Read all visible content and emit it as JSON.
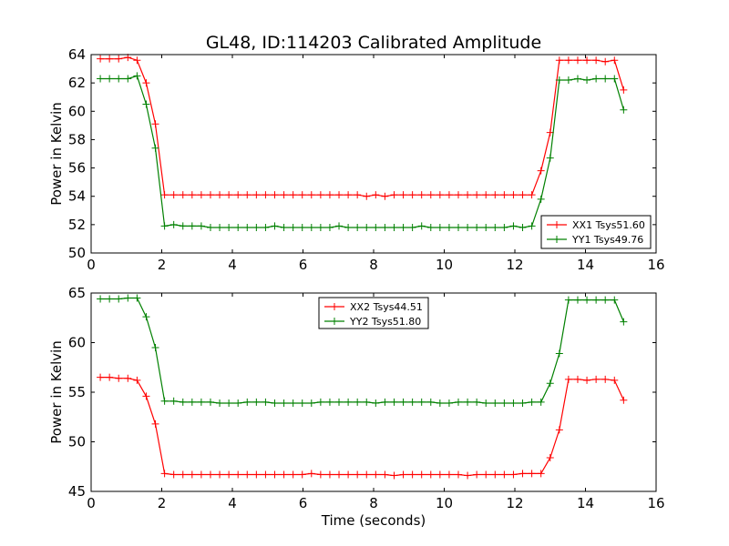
{
  "title": "GL48, ID:114203 Calibrated Amplitude",
  "colors": {
    "red": "#ff0000",
    "green": "#008000"
  },
  "chart_data": [
    {
      "type": "line",
      "xlabel": "",
      "ylabel": "Power in Kelvin",
      "xlim": [
        0,
        16
      ],
      "ylim": [
        50,
        64
      ],
      "xticks": [
        "0",
        "2",
        "4",
        "6",
        "8",
        "10",
        "12",
        "14",
        "16"
      ],
      "yticks": [
        "50",
        "52",
        "54",
        "56",
        "58",
        "60",
        "62",
        "64"
      ],
      "legend_position": "lower-right",
      "x": [
        0.26,
        0.52,
        0.78,
        1.04,
        1.3,
        1.56,
        1.82,
        2.08,
        2.34,
        2.6,
        2.86,
        3.12,
        3.38,
        3.64,
        3.9,
        4.16,
        4.42,
        4.68,
        4.94,
        5.2,
        5.46,
        5.72,
        5.98,
        6.24,
        6.5,
        6.76,
        7.02,
        7.28,
        7.54,
        7.8,
        8.06,
        8.32,
        8.58,
        8.84,
        9.1,
        9.36,
        9.62,
        9.88,
        10.14,
        10.4,
        10.66,
        10.92,
        11.18,
        11.44,
        11.7,
        11.96,
        12.22,
        12.48,
        12.74,
        13.0,
        13.26,
        13.52,
        13.78,
        14.04,
        14.3,
        14.56,
        14.82,
        15.08
      ],
      "series": [
        {
          "name": "XX1 Tsys51.60",
          "color": "#ff0000",
          "values": [
            63.7,
            63.7,
            63.7,
            63.8,
            63.6,
            62.0,
            59.1,
            54.1,
            54.1,
            54.1,
            54.1,
            54.1,
            54.1,
            54.1,
            54.1,
            54.1,
            54.1,
            54.1,
            54.1,
            54.1,
            54.1,
            54.1,
            54.1,
            54.1,
            54.1,
            54.1,
            54.1,
            54.1,
            54.1,
            54.0,
            54.1,
            54.0,
            54.1,
            54.1,
            54.1,
            54.1,
            54.1,
            54.1,
            54.1,
            54.1,
            54.1,
            54.1,
            54.1,
            54.1,
            54.1,
            54.1,
            54.1,
            54.1,
            55.8,
            58.5,
            63.6,
            63.6,
            63.6,
            63.6,
            63.6,
            63.5,
            63.6,
            61.5
          ]
        },
        {
          "name": "YY1 Tsys49.76",
          "color": "#008000",
          "values": [
            62.3,
            62.3,
            62.3,
            62.3,
            62.5,
            60.5,
            57.4,
            51.9,
            52.0,
            51.9,
            51.9,
            51.9,
            51.8,
            51.8,
            51.8,
            51.8,
            51.8,
            51.8,
            51.8,
            51.9,
            51.8,
            51.8,
            51.8,
            51.8,
            51.8,
            51.8,
            51.9,
            51.8,
            51.8,
            51.8,
            51.8,
            51.8,
            51.8,
            51.8,
            51.8,
            51.9,
            51.8,
            51.8,
            51.8,
            51.8,
            51.8,
            51.8,
            51.8,
            51.8,
            51.8,
            51.9,
            51.8,
            51.9,
            53.8,
            56.7,
            62.2,
            62.2,
            62.3,
            62.2,
            62.3,
            62.3,
            62.3,
            60.1
          ]
        }
      ]
    },
    {
      "type": "line",
      "xlabel": "Time (seconds)",
      "ylabel": "Power in Kelvin",
      "xlim": [
        0,
        16
      ],
      "ylim": [
        45,
        65
      ],
      "xticks": [
        "0",
        "2",
        "4",
        "6",
        "8",
        "10",
        "12",
        "14",
        "16"
      ],
      "yticks": [
        "45",
        "50",
        "55",
        "60",
        "65"
      ],
      "legend_position": "upper-center",
      "x": [
        0.26,
        0.52,
        0.78,
        1.04,
        1.3,
        1.56,
        1.82,
        2.08,
        2.34,
        2.6,
        2.86,
        3.12,
        3.38,
        3.64,
        3.9,
        4.16,
        4.42,
        4.68,
        4.94,
        5.2,
        5.46,
        5.72,
        5.98,
        6.24,
        6.5,
        6.76,
        7.02,
        7.28,
        7.54,
        7.8,
        8.06,
        8.32,
        8.58,
        8.84,
        9.1,
        9.36,
        9.62,
        9.88,
        10.14,
        10.4,
        10.66,
        10.92,
        11.18,
        11.44,
        11.7,
        11.96,
        12.22,
        12.48,
        12.74,
        13.0,
        13.26,
        13.52,
        13.78,
        14.04,
        14.3,
        14.56,
        14.82,
        15.08
      ],
      "series": [
        {
          "name": "XX2 Tsys44.51",
          "color": "#ff0000",
          "values": [
            56.5,
            56.5,
            56.4,
            56.4,
            56.2,
            54.6,
            51.8,
            46.8,
            46.7,
            46.7,
            46.7,
            46.7,
            46.7,
            46.7,
            46.7,
            46.7,
            46.7,
            46.7,
            46.7,
            46.7,
            46.7,
            46.7,
            46.7,
            46.8,
            46.7,
            46.7,
            46.7,
            46.7,
            46.7,
            46.7,
            46.7,
            46.7,
            46.6,
            46.7,
            46.7,
            46.7,
            46.7,
            46.7,
            46.7,
            46.7,
            46.6,
            46.7,
            46.7,
            46.7,
            46.7,
            46.7,
            46.8,
            46.8,
            46.8,
            48.4,
            51.2,
            56.3,
            56.3,
            56.2,
            56.3,
            56.3,
            56.2,
            54.2
          ]
        },
        {
          "name": "YY2 Tsys51.80",
          "color": "#008000",
          "values": [
            64.4,
            64.4,
            64.4,
            64.5,
            64.5,
            62.6,
            59.5,
            54.1,
            54.1,
            54.0,
            54.0,
            54.0,
            54.0,
            53.9,
            53.9,
            53.9,
            54.0,
            54.0,
            54.0,
            53.9,
            53.9,
            53.9,
            53.9,
            53.9,
            54.0,
            54.0,
            54.0,
            54.0,
            54.0,
            54.0,
            53.9,
            54.0,
            54.0,
            54.0,
            54.0,
            54.0,
            54.0,
            53.9,
            53.9,
            54.0,
            54.0,
            54.0,
            53.9,
            53.9,
            53.9,
            53.9,
            53.9,
            54.0,
            54.0,
            55.9,
            58.9,
            64.3,
            64.3,
            64.3,
            64.3,
            64.3,
            64.3,
            62.1
          ]
        }
      ]
    }
  ]
}
